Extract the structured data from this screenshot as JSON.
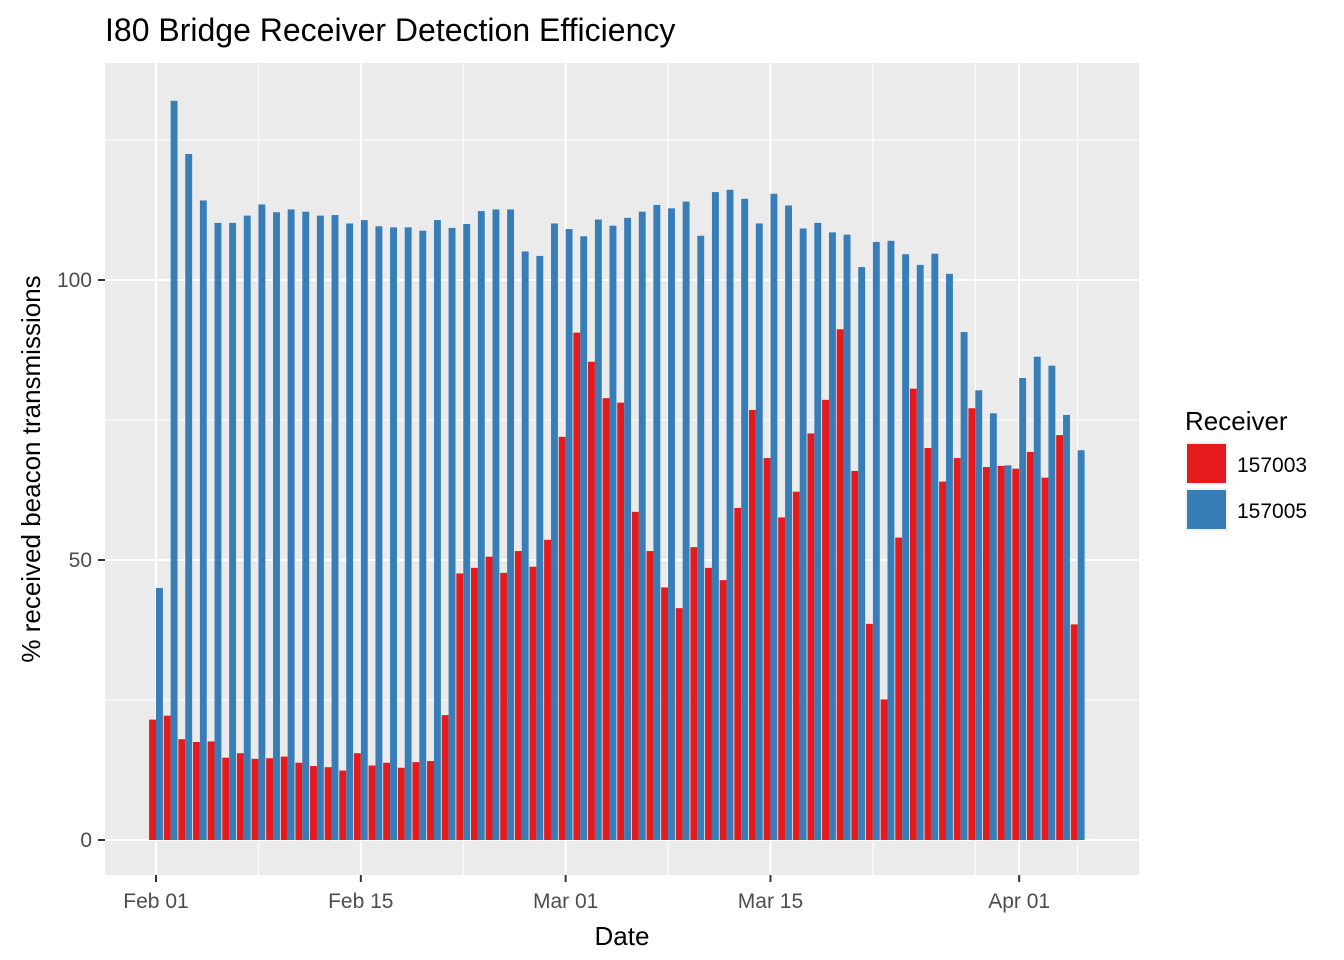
{
  "chart_data": {
    "type": "bar",
    "title": "I80 Bridge Receiver Detection Efficiency",
    "xlabel": "Date",
    "ylabel": "% received beacon transmissions",
    "x_ticks": [
      "Feb 01",
      "Feb 15",
      "Mar 01",
      "Mar 15",
      "Apr 01"
    ],
    "y_ticks": [
      "0",
      "50",
      "100"
    ],
    "ylim": [
      -6,
      137
    ],
    "legend": {
      "title": "Receiver",
      "position": "right"
    },
    "background": "#ebebeb",
    "grid": true,
    "series": [
      {
        "name": "157003",
        "color": "#e41a1c",
        "values": [
          21.5,
          22.2,
          18,
          17.5,
          17.6,
          14.7,
          15.5,
          14.5,
          14.6,
          14.9,
          13.8,
          13.2,
          13.0,
          12.4,
          15.5,
          13.3,
          13.8,
          12.9,
          13.9,
          14.1,
          22.3,
          47.6,
          48.6,
          50.6,
          47.7,
          51.6,
          48.8,
          53.6,
          72.0,
          90.6,
          85.4,
          78.9,
          78.1,
          58.6,
          51.6,
          45.1,
          41.4,
          52.3,
          48.6,
          46.4,
          59.3,
          76.8,
          68.2,
          57.6,
          62.2,
          72.6,
          78.6,
          91.2,
          65.9,
          38.6,
          25.1,
          54.0,
          80.6,
          70.0,
          64.0,
          68.2,
          77.1,
          66.6,
          66.8,
          66.3,
          69.3,
          64.7,
          72.3,
          38.5
        ]
      },
      {
        "name": "157005",
        "color": "#377eb8",
        "values": [
          45.0,
          132.0,
          122.5,
          114.2,
          110.2,
          110.2,
          111.5,
          113.5,
          112.1,
          112.6,
          112.2,
          111.5,
          111.6,
          110.1,
          110.7,
          109.6,
          109.4,
          109.4,
          108.8,
          110.7,
          109.3,
          110.0,
          112.3,
          112.6,
          112.6,
          105.1,
          104.3,
          110.1,
          109.1,
          107.8,
          110.8,
          109.7,
          111.1,
          112.2,
          113.4,
          112.8,
          114.0,
          107.9,
          115.7,
          116.1,
          114.5,
          110.1,
          115.4,
          113.3,
          109.2,
          110.2,
          108.5,
          108.1,
          102.3,
          106.8,
          107.0,
          104.6,
          102.7,
          104.7,
          101.1,
          90.7,
          80.3,
          76.2,
          66.9,
          82.5,
          86.3,
          84.7,
          75.9,
          69.6
        ]
      }
    ]
  }
}
